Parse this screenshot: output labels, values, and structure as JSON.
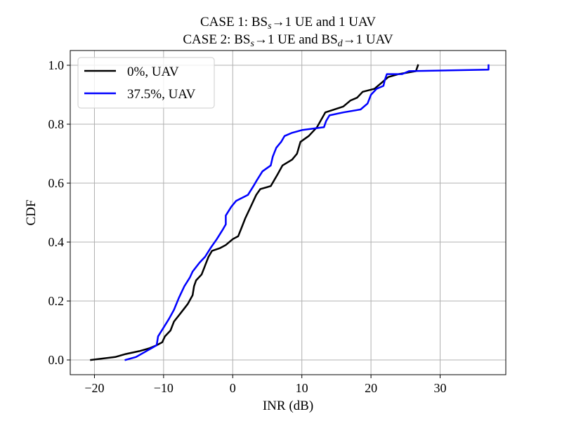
{
  "chart_data": {
    "type": "line",
    "title_line1": {
      "pre": "CASE 1: BS",
      "sub": "s",
      "post": "→1 UE and 1 UAV"
    },
    "title_line2": {
      "pre": "CASE 2: BS",
      "sub1": "s",
      "mid": "→1 UE and BS",
      "sub2": "d",
      "post": "→1 UAV"
    },
    "xlabel": "INR (dB)",
    "ylabel": "CDF",
    "xlim": [
      -23.5,
      39.5
    ],
    "ylim": [
      -0.05,
      1.05
    ],
    "xticks": [
      -20,
      -10,
      0,
      10,
      20,
      30
    ],
    "xtick_labels": [
      "−20",
      "−10",
      "0",
      "10",
      "20",
      "30"
    ],
    "yticks": [
      0.0,
      0.2,
      0.4,
      0.6,
      0.8,
      1.0
    ],
    "ytick_labels": [
      "0.0",
      "0.2",
      "0.4",
      "0.6",
      "0.8",
      "1.0"
    ],
    "grid": true,
    "legend_position": "top-left",
    "series": [
      {
        "name": "0%, UAV",
        "color": "#000000",
        "points": [
          [
            -20.5,
            0.0
          ],
          [
            -17.0,
            0.01
          ],
          [
            -15.5,
            0.02
          ],
          [
            -13.5,
            0.03
          ],
          [
            -12.0,
            0.04
          ],
          [
            -11.0,
            0.05
          ],
          [
            -10.2,
            0.06
          ],
          [
            -9.8,
            0.08
          ],
          [
            -9.0,
            0.1
          ],
          [
            -8.5,
            0.13
          ],
          [
            -7.5,
            0.16
          ],
          [
            -6.5,
            0.19
          ],
          [
            -5.8,
            0.22
          ],
          [
            -5.6,
            0.25
          ],
          [
            -5.3,
            0.27
          ],
          [
            -4.5,
            0.29
          ],
          [
            -4.0,
            0.32
          ],
          [
            -3.5,
            0.35
          ],
          [
            -3.0,
            0.37
          ],
          [
            -1.8,
            0.38
          ],
          [
            -1.0,
            0.39
          ],
          [
            0.0,
            0.41
          ],
          [
            0.8,
            0.42
          ],
          [
            1.3,
            0.45
          ],
          [
            1.8,
            0.48
          ],
          [
            2.6,
            0.52
          ],
          [
            3.4,
            0.56
          ],
          [
            4.0,
            0.58
          ],
          [
            5.5,
            0.59
          ],
          [
            6.5,
            0.63
          ],
          [
            7.2,
            0.66
          ],
          [
            8.6,
            0.68
          ],
          [
            9.3,
            0.7
          ],
          [
            9.8,
            0.74
          ],
          [
            11.0,
            0.76
          ],
          [
            12.2,
            0.79
          ],
          [
            13.4,
            0.84
          ],
          [
            16.0,
            0.86
          ],
          [
            17.0,
            0.88
          ],
          [
            18.0,
            0.89
          ],
          [
            18.8,
            0.91
          ],
          [
            20.5,
            0.92
          ],
          [
            21.5,
            0.94
          ],
          [
            22.5,
            0.96
          ],
          [
            24.0,
            0.97
          ],
          [
            26.5,
            0.98
          ],
          [
            26.8,
            1.0
          ]
        ]
      },
      {
        "name": "37.5%, UAV",
        "color": "#0000ff",
        "points": [
          [
            -15.5,
            0.0
          ],
          [
            -14.0,
            0.01
          ],
          [
            -12.5,
            0.03
          ],
          [
            -11.0,
            0.05
          ],
          [
            -10.8,
            0.08
          ],
          [
            -10.0,
            0.11
          ],
          [
            -9.2,
            0.14
          ],
          [
            -8.5,
            0.17
          ],
          [
            -7.8,
            0.21
          ],
          [
            -7.0,
            0.25
          ],
          [
            -6.2,
            0.28
          ],
          [
            -5.8,
            0.3
          ],
          [
            -4.8,
            0.33
          ],
          [
            -4.0,
            0.35
          ],
          [
            -3.2,
            0.38
          ],
          [
            -2.3,
            0.41
          ],
          [
            -1.5,
            0.44
          ],
          [
            -1.0,
            0.46
          ],
          [
            -1.0,
            0.49
          ],
          [
            -0.2,
            0.52
          ],
          [
            0.5,
            0.54
          ],
          [
            2.2,
            0.56
          ],
          [
            3.0,
            0.59
          ],
          [
            3.5,
            0.61
          ],
          [
            4.3,
            0.64
          ],
          [
            5.5,
            0.66
          ],
          [
            5.8,
            0.69
          ],
          [
            6.3,
            0.72
          ],
          [
            7.0,
            0.74
          ],
          [
            7.5,
            0.76
          ],
          [
            8.5,
            0.77
          ],
          [
            10.0,
            0.78
          ],
          [
            13.2,
            0.79
          ],
          [
            13.5,
            0.81
          ],
          [
            14.0,
            0.83
          ],
          [
            16.0,
            0.84
          ],
          [
            18.5,
            0.85
          ],
          [
            19.5,
            0.87
          ],
          [
            20.0,
            0.9
          ],
          [
            20.8,
            0.92
          ],
          [
            21.8,
            0.93
          ],
          [
            22.0,
            0.95
          ],
          [
            22.3,
            0.97
          ],
          [
            24.5,
            0.97
          ],
          [
            25.5,
            0.98
          ],
          [
            37.0,
            0.985
          ],
          [
            37.0,
            1.0
          ]
        ]
      }
    ]
  }
}
